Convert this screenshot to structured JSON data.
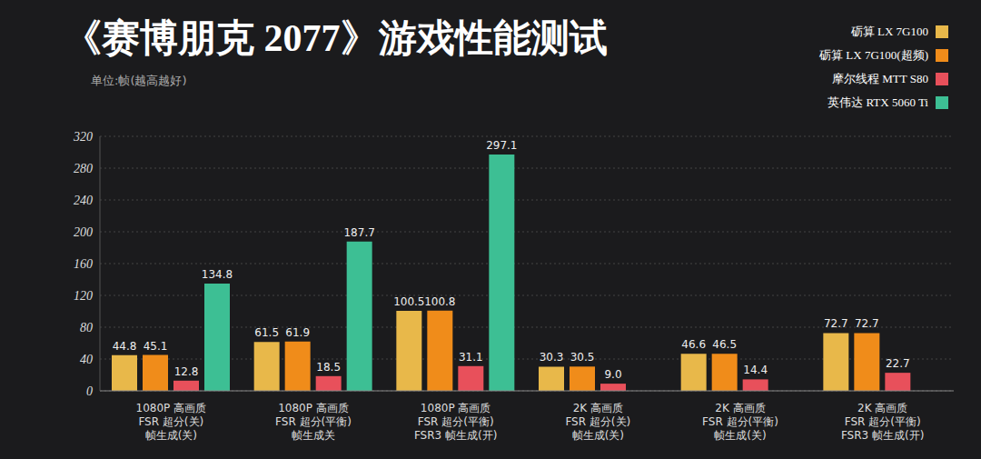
{
  "chart_data": {
    "type": "bar",
    "title": "《赛博朋克 2077》游戏性能测试",
    "subtitle": "单位:帧(越高越好)",
    "categories": [
      "1080P 高画质\nFSR 超分(关)\n帧生成(关)",
      "1080P 高画质\nFSR 超分(平衡)\n帧生成关",
      "1080P 高画质\nFSR 超分(平衡)\nFSR3 帧生成(开)",
      "2K 高画质\nFSR 超分(关)\n帧生成(关)",
      "2K 高画质\nFSR 超分(平衡)\n帧生成(关)",
      "2K 高画质\nFSR 超分(平衡)\nFSR3 帧生成(开)"
    ],
    "series": [
      {
        "name": "砺算 LX 7G100",
        "color": "#e8b84a",
        "values": [
          44.8,
          61.5,
          100.5,
          30.3,
          46.6,
          72.7
        ]
      },
      {
        "name": "砺算 LX 7G100(超频)",
        "color": "#f08c1a",
        "values": [
          45.1,
          61.9,
          100.8,
          30.5,
          46.5,
          72.7
        ]
      },
      {
        "name": "摩尔线程 MTT S80",
        "color": "#e8505b",
        "values": [
          12.8,
          18.5,
          31.1,
          9.0,
          14.4,
          22.7
        ],
        "value_labels": [
          "12.8",
          "18.5",
          "31.1",
          "9.0",
          "14.4",
          "22.7"
        ]
      },
      {
        "name": "英伟达 RTX 5060 Ti",
        "color": "#3dbf94",
        "values": [
          134.8,
          187.7,
          297.1,
          null,
          null,
          null
        ]
      }
    ],
    "ylim": [
      0,
      320
    ],
    "yticks": [
      0,
      40,
      80,
      120,
      160,
      200,
      240,
      280,
      320
    ],
    "grid": true,
    "legend": "top-right",
    "data_labels": true
  }
}
